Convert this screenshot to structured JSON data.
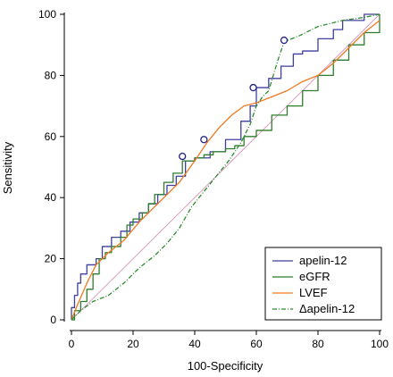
{
  "chart_data": {
    "type": "line",
    "xlabel": "100-Specificity",
    "ylabel": "Sensitivity",
    "xlim": [
      0,
      100
    ],
    "ylim": [
      0,
      100
    ],
    "xticks": [
      0,
      20,
      40,
      60,
      80,
      100
    ],
    "yticks": [
      0,
      20,
      40,
      60,
      80,
      100
    ],
    "grid": false,
    "legend_position": "bottom-right",
    "reference_line": {
      "from": [
        0,
        0
      ],
      "to": [
        100,
        100
      ],
      "color": "#d8a0c0"
    },
    "series": [
      {
        "name": "apelin-12",
        "color": "#3f3f9f",
        "style": "solid",
        "step": true,
        "points": [
          [
            0,
            0
          ],
          [
            0,
            4
          ],
          [
            1,
            8
          ],
          [
            2,
            12
          ],
          [
            3,
            15
          ],
          [
            5,
            18
          ],
          [
            8,
            20
          ],
          [
            10,
            24
          ],
          [
            13,
            27
          ],
          [
            16,
            29
          ],
          [
            19,
            32
          ],
          [
            22,
            35
          ],
          [
            25,
            38
          ],
          [
            28,
            41
          ],
          [
            31,
            44
          ],
          [
            34,
            47
          ],
          [
            37,
            52
          ],
          [
            40,
            53
          ],
          [
            45,
            55
          ],
          [
            50,
            59
          ],
          [
            55,
            65
          ],
          [
            58,
            70
          ],
          [
            60,
            76
          ],
          [
            64,
            79
          ],
          [
            68,
            83
          ],
          [
            72,
            87
          ],
          [
            75,
            88
          ],
          [
            80,
            92
          ],
          [
            85,
            95
          ],
          [
            88,
            98
          ],
          [
            95,
            100
          ],
          [
            100,
            100
          ]
        ]
      },
      {
        "name": "eGFR",
        "color": "#2e7d2e",
        "style": "solid",
        "step": true,
        "points": [
          [
            0,
            0
          ],
          [
            1,
            3
          ],
          [
            3,
            6
          ],
          [
            5,
            10
          ],
          [
            7,
            15
          ],
          [
            9,
            20
          ],
          [
            11,
            22
          ],
          [
            13,
            24
          ],
          [
            16,
            27
          ],
          [
            18,
            31
          ],
          [
            20,
            33
          ],
          [
            23,
            35
          ],
          [
            25,
            38
          ],
          [
            27,
            41
          ],
          [
            30,
            45
          ],
          [
            33,
            48
          ],
          [
            36,
            52
          ],
          [
            40,
            53
          ],
          [
            43,
            54
          ],
          [
            46,
            55
          ],
          [
            50,
            56
          ],
          [
            53,
            57
          ],
          [
            56,
            60
          ],
          [
            60,
            62
          ],
          [
            65,
            67
          ],
          [
            70,
            70
          ],
          [
            75,
            75
          ],
          [
            80,
            80
          ],
          [
            85,
            85
          ],
          [
            90,
            90
          ],
          [
            95,
            94
          ],
          [
            100,
            100
          ]
        ]
      },
      {
        "name": "LVEF",
        "color": "#f07820",
        "style": "solid",
        "step": false,
        "points": [
          [
            0,
            0
          ],
          [
            2,
            5
          ],
          [
            5,
            12
          ],
          [
            8,
            18
          ],
          [
            12,
            22
          ],
          [
            17,
            26
          ],
          [
            22,
            32
          ],
          [
            27,
            37
          ],
          [
            31,
            41
          ],
          [
            35,
            45
          ],
          [
            40,
            52
          ],
          [
            44,
            58
          ],
          [
            48,
            63
          ],
          [
            52,
            67
          ],
          [
            56,
            70
          ],
          [
            60,
            71
          ],
          [
            65,
            73
          ],
          [
            70,
            75
          ],
          [
            75,
            78
          ],
          [
            80,
            80
          ],
          [
            85,
            84
          ],
          [
            90,
            89
          ],
          [
            95,
            94
          ],
          [
            100,
            98
          ]
        ]
      },
      {
        "name": "Δapelin-12",
        "color": "#2e8b2e",
        "style": "dash-dot",
        "step": false,
        "points": [
          [
            0,
            0
          ],
          [
            3,
            3
          ],
          [
            7,
            6
          ],
          [
            12,
            8
          ],
          [
            17,
            12
          ],
          [
            22,
            17
          ],
          [
            27,
            21
          ],
          [
            31,
            25
          ],
          [
            35,
            30
          ],
          [
            39,
            37
          ],
          [
            43,
            42
          ],
          [
            47,
            47
          ],
          [
            51,
            52
          ],
          [
            55,
            58
          ],
          [
            58,
            64
          ],
          [
            60,
            70
          ],
          [
            62,
            73
          ],
          [
            64,
            75
          ],
          [
            67,
            85
          ],
          [
            69,
            91
          ],
          [
            74,
            93
          ],
          [
            80,
            96
          ],
          [
            88,
            98
          ],
          [
            95,
            99
          ],
          [
            100,
            100
          ]
        ]
      }
    ],
    "markers": [
      {
        "x": 36,
        "y": 53.5
      },
      {
        "x": 43,
        "y": 59
      },
      {
        "x": 59,
        "y": 76
      },
      {
        "x": 69,
        "y": 91.5
      }
    ]
  }
}
